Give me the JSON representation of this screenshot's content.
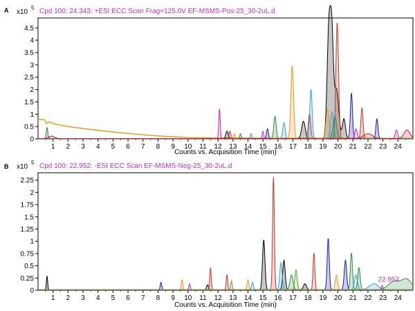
{
  "chart_data": [
    {
      "type": "line",
      "panel_letter": "A",
      "title": "Cpd 100: 24.343: +ESI ECC Scan Frag=125.0V EF-MSMS-Pos-25_30-2uL.d",
      "y_multiplier": "x10",
      "y_exponent": "5",
      "xlabel": "Counts vs. Acquisition Time (min)",
      "ylabel": "",
      "xlim": [
        0,
        25
      ],
      "ylim": [
        0,
        4.9
      ],
      "x_ticks": [
        1,
        2,
        3,
        4,
        5,
        6,
        7,
        8,
        9,
        10,
        11,
        12,
        13,
        14,
        15,
        16,
        17,
        18,
        19,
        20,
        21,
        22,
        23,
        24
      ],
      "y_ticks": [
        0,
        0.5,
        1,
        1.5,
        2,
        2.5,
        3,
        3.5,
        4,
        4.5
      ],
      "y_tick_labels": [
        "0",
        "0.5",
        "1",
        "1.5",
        "2",
        "2.5",
        "3",
        "3.5",
        "4",
        "4.5"
      ],
      "baseline": {
        "color": "#e8961e",
        "points": [
          [
            0,
            0.8
          ],
          [
            0.4,
            0.78
          ],
          [
            0.6,
            0.62
          ],
          [
            0.75,
            0.7
          ],
          [
            1,
            0.62
          ],
          [
            2,
            0.5
          ],
          [
            3,
            0.42
          ],
          [
            4,
            0.35
          ],
          [
            5,
            0.28
          ],
          [
            6,
            0.22
          ],
          [
            7,
            0.17
          ],
          [
            8,
            0.12
          ],
          [
            9,
            0.09
          ],
          [
            10,
            0.06
          ],
          [
            11,
            0.05
          ],
          [
            12,
            0.04
          ],
          [
            13,
            0.04
          ],
          [
            16,
            0.03
          ],
          [
            20,
            0.03
          ],
          [
            25,
            0.02
          ]
        ]
      },
      "series": [
        {
          "color": "#000000",
          "peaks": [
            [
              19.4,
              4.55,
              0.12
            ],
            [
              19.6,
              3.5,
              0.1
            ],
            [
              19.9,
              2.0,
              0.15
            ],
            [
              17.7,
              0.7,
              0.12
            ],
            [
              12.6,
              0.3,
              0.08
            ],
            [
              20.4,
              0.8,
              0.1
            ]
          ]
        },
        {
          "color": "#c0392b",
          "peaks": [
            [
              19.95,
              4.7,
              0.09
            ],
            [
              21.6,
              1.25,
              0.07
            ],
            [
              18.1,
              1.0,
              0.08
            ],
            [
              12.8,
              0.3,
              0.06
            ]
          ]
        },
        {
          "color": "#e8961e",
          "peaks": [
            [
              16.95,
              2.95,
              0.09
            ],
            [
              19.3,
              1.2,
              0.1
            ],
            [
              13.1,
              0.2,
              0.06
            ]
          ]
        },
        {
          "color": "#1a1aa6",
          "peaks": [
            [
              20.9,
              1.85,
              0.07
            ],
            [
              22.6,
              0.8,
              0.07
            ],
            [
              15.3,
              0.4,
              0.06
            ]
          ]
        },
        {
          "color": "#3aa0d8",
          "peaks": [
            [
              18.2,
              2.0,
              0.08
            ],
            [
              16.4,
              0.65,
              0.08
            ],
            [
              19.6,
              1.1,
              0.1
            ],
            [
              14.2,
              0.2,
              0.05
            ]
          ]
        },
        {
          "color": "#c02ec0",
          "peaks": [
            [
              12.1,
              1.2,
              0.05
            ],
            [
              23.9,
              0.35,
              0.08
            ],
            [
              15.0,
              0.3,
              0.05
            ],
            [
              21.2,
              0.4,
              0.08
            ]
          ]
        },
        {
          "color": "#2e8b3c",
          "peaks": [
            [
              15.8,
              0.9,
              0.08
            ],
            [
              0.6,
              0.45,
              0.05
            ],
            [
              19.8,
              0.9,
              0.12
            ],
            [
              13.5,
              0.2,
              0.05
            ]
          ]
        },
        {
          "color": "#b22222",
          "peaks": [
            [
              24.6,
              0.35,
              0.2
            ],
            [
              22.0,
              0.2,
              0.3
            ],
            [
              0.9,
              0.1,
              0.2
            ]
          ]
        }
      ]
    },
    {
      "type": "line",
      "panel_letter": "B",
      "title": "Cpd 100: 22.952: -ESI ECC Scan EF-MSMS-Neg-25_30-2uL.d",
      "y_multiplier": "x10",
      "y_exponent": "5",
      "xlabel": "Counts vs. Acquisition Time (min)",
      "ylabel": "",
      "annotation": {
        "text": "22.952",
        "x": 22.95,
        "y": 0.09,
        "color": "#c02ec0"
      },
      "xlim": [
        0,
        25
      ],
      "ylim": [
        0,
        2.4
      ],
      "x_ticks": [
        1,
        2,
        3,
        4,
        5,
        6,
        7,
        8,
        9,
        10,
        11,
        12,
        13,
        14,
        15,
        16,
        17,
        18,
        19,
        20,
        21,
        22,
        23,
        24
      ],
      "y_ticks": [
        0,
        0.25,
        0.5,
        0.75,
        1,
        1.25,
        1.5,
        1.75,
        2,
        2.25
      ],
      "y_tick_labels": [
        "0",
        "0.25",
        "0.5",
        "0.75",
        "1",
        "1.25",
        "1.5",
        "1.75",
        "2",
        "2.25"
      ],
      "baseline": {
        "color": "#c02ec0",
        "points": [
          [
            0,
            0.01
          ],
          [
            25,
            0.01
          ]
        ]
      },
      "series": [
        {
          "color": "#000000",
          "peaks": [
            [
              15.05,
              1.02,
              0.08
            ],
            [
              16.4,
              0.6,
              0.08
            ],
            [
              0.6,
              0.28,
              0.04
            ],
            [
              11.3,
              0.1,
              0.06
            ],
            [
              17.8,
              0.12,
              0.1
            ]
          ]
        },
        {
          "color": "#c0392b",
          "peaks": [
            [
              15.7,
              2.3,
              0.06
            ],
            [
              18.4,
              0.75,
              0.06
            ],
            [
              11.5,
              0.45,
              0.05
            ],
            [
              12.6,
              0.3,
              0.05
            ]
          ]
        },
        {
          "color": "#1a1aa6",
          "peaks": [
            [
              19.35,
              1.05,
              0.07
            ],
            [
              20.5,
              0.6,
              0.08
            ],
            [
              8.2,
              0.15,
              0.05
            ]
          ]
        },
        {
          "color": "#2e8b3c",
          "peaks": [
            [
              20.9,
              0.75,
              0.07
            ],
            [
              21.4,
              0.45,
              0.08
            ],
            [
              23.8,
              0.18,
              0.4
            ],
            [
              24.6,
              0.2,
              0.3
            ],
            [
              16.9,
              0.3,
              0.1
            ]
          ]
        },
        {
          "color": "#3aa0d8",
          "peaks": [
            [
              16.2,
              0.55,
              0.08
            ],
            [
              21.2,
              0.3,
              0.1
            ],
            [
              22.4,
              0.12,
              0.3
            ],
            [
              14.3,
              0.15,
              0.06
            ]
          ]
        },
        {
          "color": "#e8961e",
          "peaks": [
            [
              9.6,
              0.2,
              0.05
            ],
            [
              14.0,
              0.2,
              0.06
            ],
            [
              19.9,
              0.3,
              0.08
            ]
          ]
        },
        {
          "color": "#c02ec0",
          "peaks": [
            [
              10.1,
              0.12,
              0.05
            ],
            [
              22.95,
              0.09,
              0.05
            ]
          ]
        },
        {
          "color": "#6a9c3a",
          "peaks": [
            [
              17.2,
              0.4,
              0.08
            ],
            [
              12.9,
              0.18,
              0.05
            ]
          ]
        }
      ]
    }
  ]
}
